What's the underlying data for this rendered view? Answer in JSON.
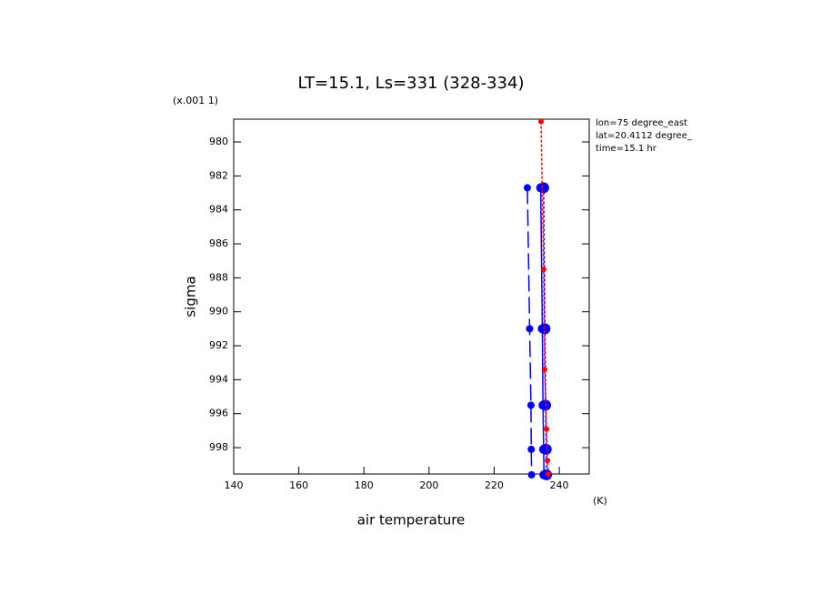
{
  "chart_data": {
    "type": "line",
    "title": "LT=15.1, Ls=331 (328-334)",
    "x_label": "air temperature",
    "x_unit": "(K)",
    "y_label": "sigma",
    "y_unit": "(x.001 1)",
    "annotations": [
      "lon=75 degree_east",
      "lat=20.4112 degree_",
      "time=15.1 hr"
    ],
    "xlim": [
      140,
      249.2
    ],
    "xticks": [
      140,
      160,
      180,
      200,
      220,
      240
    ],
    "ylim": [
      978.66,
      999.55
    ],
    "y_inverted": true,
    "yticks": [
      980,
      982,
      984,
      986,
      988,
      990,
      992,
      994,
      996,
      998
    ],
    "series": [
      {
        "color": "#0000ff",
        "dash": "long",
        "marker": 4,
        "x": [
          230.2,
          230.9,
          231.3,
          231.4,
          231.5
        ],
        "y": [
          982.7,
          991.0,
          995.5,
          998.1,
          999.6
        ]
      },
      {
        "color": "#0000ff",
        "dash": "solid",
        "marker": 5,
        "x": [
          234.3,
          234.8,
          235.0,
          235.2,
          235.3
        ],
        "y": [
          982.7,
          991.0,
          995.5,
          998.1,
          999.6
        ]
      },
      {
        "color": "#0000ff",
        "dash": "dot",
        "marker": 6,
        "x": [
          235.2,
          235.6,
          235.8,
          236.0,
          236.1
        ],
        "y": [
          982.7,
          991.0,
          995.5,
          998.1,
          999.6
        ]
      },
      {
        "color": "#ff0000",
        "dash": "dot",
        "marker": 3,
        "x": [
          234.4,
          235.2,
          235.5,
          236.1,
          236.4,
          236.6
        ],
        "y": [
          978.8,
          987.5,
          993.4,
          996.9,
          998.75,
          999.55
        ]
      }
    ]
  }
}
